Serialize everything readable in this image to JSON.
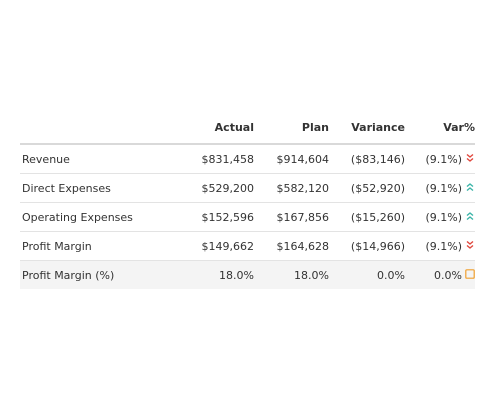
{
  "table": {
    "headers": {
      "label": "",
      "actual": "Actual",
      "plan": "Plan",
      "variance": "Variance",
      "var_pct": "Var%"
    },
    "rows": [
      {
        "label": "Revenue",
        "actual": "$831,458",
        "plan": "$914,604",
        "variance": "($83,146)",
        "var_pct": "(9.1%)",
        "indicator": "double-chevron-down-icon"
      },
      {
        "label": "Direct Expenses",
        "actual": "$529,200",
        "plan": "$582,120",
        "variance": "($52,920)",
        "var_pct": "(9.1%)",
        "indicator": "double-chevron-up-icon"
      },
      {
        "label": "Operating Expenses",
        "actual": "$152,596",
        "plan": "$167,856",
        "variance": "($15,260)",
        "var_pct": "(9.1%)",
        "indicator": "double-chevron-up-icon"
      },
      {
        "label": "Profit Margin",
        "actual": "$149,662",
        "plan": "$164,628",
        "variance": "($14,966)",
        "var_pct": "(9.1%)",
        "indicator": "double-chevron-down-icon"
      },
      {
        "label": "Profit Margin (%)",
        "actual": "18.0%",
        "plan": "18.0%",
        "variance": "0.0%",
        "var_pct": "0.0%",
        "indicator": "square-outline-icon"
      }
    ]
  },
  "colors": {
    "down_indicator": "#e0463c",
    "up_indicator": "#3bb4a8",
    "neutral_indicator": "#f0a030"
  }
}
